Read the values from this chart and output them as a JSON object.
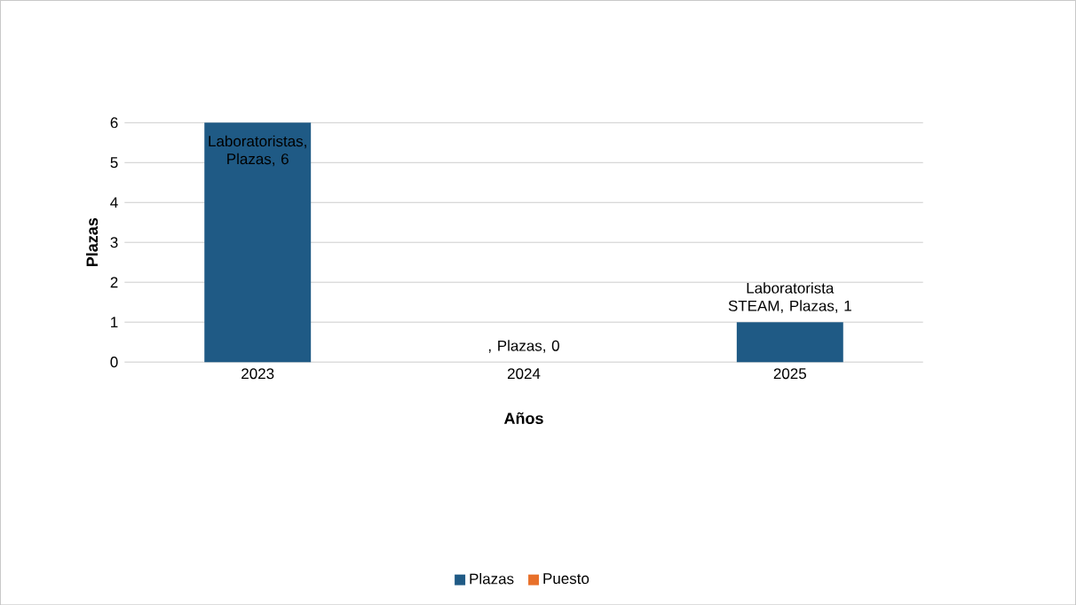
{
  "chart_data": {
    "type": "bar",
    "xlabel": "Años",
    "ylabel": "Plazas",
    "categories": [
      "2023",
      "2024",
      "2025"
    ],
    "series": [
      {
        "name": "Plazas",
        "color": "#1f5a85",
        "values": [
          6,
          0,
          1
        ],
        "value_labels": [
          "Laboratoristas, Plazas, 6",
          ", Plazas, 0",
          "Laboratorista STEAM, Plazas, 1"
        ]
      },
      {
        "name": "Puesto",
        "color": "#e8702a",
        "values": [
          null,
          null,
          null
        ]
      }
    ],
    "ylim": [
      0,
      6
    ],
    "yticks": [
      0,
      1,
      2,
      3,
      4,
      5,
      6
    ],
    "grid": "y",
    "legend": "bottom"
  }
}
